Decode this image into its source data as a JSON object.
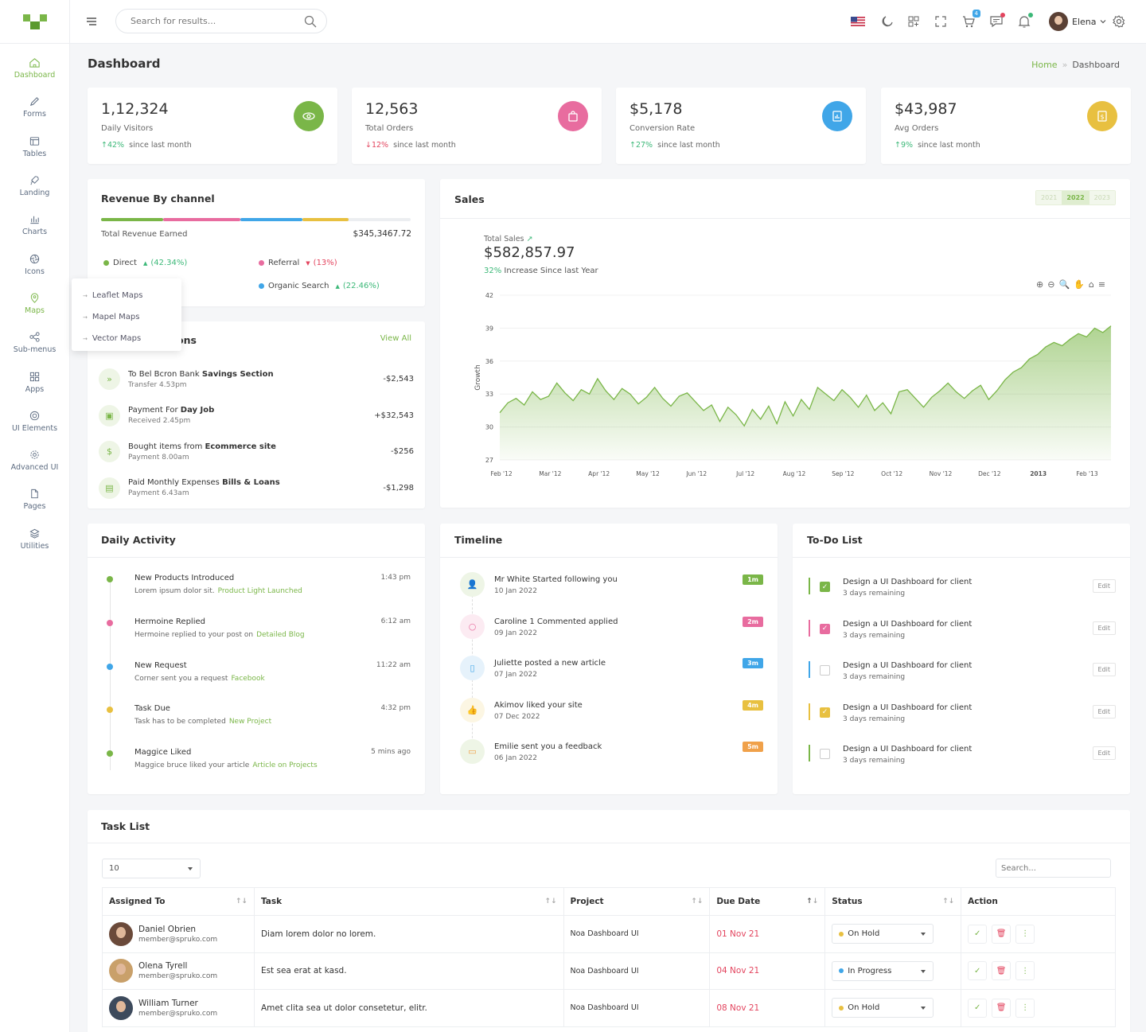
{
  "topbar": {
    "search_placeholder": "Search for results...",
    "cart_badge": "4",
    "user_name": "Elena"
  },
  "sidebar": {
    "items": [
      {
        "label": "Dashboard",
        "icon": "home-icon"
      },
      {
        "label": "Forms",
        "icon": "pencil-icon"
      },
      {
        "label": "Tables",
        "icon": "table-icon"
      },
      {
        "label": "Landing",
        "icon": "rocket-icon"
      },
      {
        "label": "Charts",
        "icon": "chart-icon"
      },
      {
        "label": "Icons",
        "icon": "aperture-icon"
      },
      {
        "label": "Maps",
        "icon": "map-pin-icon"
      },
      {
        "label": "Sub-menus",
        "icon": "share-icon"
      },
      {
        "label": "Apps",
        "icon": "grid-icon"
      },
      {
        "label": "UI Elements",
        "icon": "layers-circle-icon"
      },
      {
        "label": "Advanced UI",
        "icon": "gear-icon"
      },
      {
        "label": "Pages",
        "icon": "file-icon"
      },
      {
        "label": "Utilities",
        "icon": "stack-icon"
      }
    ],
    "maps_submenu": [
      "Leaflet Maps",
      "Mapel Maps",
      "Vector Maps"
    ]
  },
  "page": {
    "title": "Dashboard",
    "breadcrumb_home": "Home",
    "breadcrumb_sep": "»",
    "breadcrumb_current": "Dashboard"
  },
  "stats": [
    {
      "value": "1,12,324",
      "label": "Daily Visitors",
      "change": "42%",
      "direction": "up",
      "suffix": "since last month",
      "color": "#7ab648"
    },
    {
      "value": "12,563",
      "label": "Total Orders",
      "change": "12%",
      "direction": "down",
      "suffix": "since last month",
      "color": "#e86c9f"
    },
    {
      "value": "$5,178",
      "label": "Conversion Rate",
      "change": "27%",
      "direction": "up",
      "suffix": "since last month",
      "color": "#40a6e8"
    },
    {
      "value": "$43,987",
      "label": "Avg Orders",
      "change": "9%",
      "direction": "up",
      "suffix": "since last month",
      "color": "#e8c040"
    }
  ],
  "revenue": {
    "title": "Revenue By channel",
    "total_label": "Total Revenue Earned",
    "total_value": "$345,3467.72",
    "channels": [
      {
        "name": "Direct",
        "pct": "(42.34%)",
        "trend": "up",
        "color": "#7ab648"
      },
      {
        "name": "Referral",
        "pct": "(13%)",
        "trend": "down",
        "color": "#e86c9f"
      },
      {
        "name": "Organic Search",
        "pct": "(22.46%)",
        "trend": "up",
        "color": "#40a6e8"
      }
    ],
    "bar_colors": [
      "#7ab648",
      "#e86c9f",
      "#40a6e8",
      "#e8c040"
    ]
  },
  "transactions": {
    "title_visible": "ons",
    "view_all": "View All",
    "items": [
      {
        "prefix": "To Bel Bcron Bank",
        "bold": "Savings Section",
        "sub": "Transfer 4.53pm",
        "amount": "-$2,543",
        "icon": "chevrons-right-icon"
      },
      {
        "prefix": "Payment For",
        "bold": "Day Job",
        "sub": "Received 2.45pm",
        "amount": "+$32,543",
        "icon": "briefcase-icon"
      },
      {
        "prefix": "Bought items from",
        "bold": "Ecommerce site",
        "sub": "Payment 8.00am",
        "amount": "-$256",
        "icon": "dollar-icon"
      },
      {
        "prefix": "Paid Monthly Expenses",
        "bold": "Bills & Loans",
        "sub": "Payment 6.43am",
        "amount": "-$1,298",
        "icon": "document-icon"
      }
    ]
  },
  "sales": {
    "title": "Sales",
    "years": [
      "2021",
      "2022",
      "2023"
    ],
    "active_year": "2022",
    "total_label": "Total Sales",
    "total_value": "$582,857.97",
    "increase_pct": "32%",
    "increase_text": "Increase Since last Year"
  },
  "chart_data": {
    "type": "area",
    "ylabel": "Growth",
    "xlabel": "",
    "ylim": [
      27,
      42
    ],
    "yticks": [
      27,
      30,
      33,
      36,
      39,
      42
    ],
    "xticks": [
      "Feb '12",
      "Mar '12",
      "Apr '12",
      "May '12",
      "Jun '12",
      "Jul '12",
      "Aug '12",
      "Sep '12",
      "Oct '12",
      "Nov '12",
      "Dec '12",
      "2013",
      "Feb '13"
    ],
    "color": "#7ab648",
    "series": [
      {
        "values": [
          31.3,
          32.2,
          32.6,
          32.0,
          33.2,
          32.5,
          32.8,
          34.0,
          33.1,
          32.4,
          33.4,
          33.0,
          34.4,
          33.3,
          32.5,
          33.5,
          33.0,
          32.1,
          32.7,
          33.6,
          32.6,
          31.9,
          32.8,
          33.1,
          32.3,
          31.5,
          32.0,
          30.5,
          31.8,
          31.1,
          30.1,
          31.6,
          30.7,
          31.9,
          30.3,
          32.3,
          31.0,
          32.5,
          31.6,
          33.6,
          33.0,
          32.4,
          33.4,
          32.7,
          31.8,
          32.9,
          31.5,
          32.2,
          31.2,
          33.2,
          33.4,
          32.6,
          31.8,
          32.7,
          33.3,
          34.0,
          33.2,
          32.6,
          33.3,
          33.8,
          32.5,
          33.3,
          34.3,
          35.0,
          35.4,
          36.2,
          36.6,
          37.3,
          37.7,
          37.4,
          38.0,
          38.5,
          38.2,
          39.0,
          38.6,
          39.2
        ]
      }
    ]
  },
  "daily_activity": {
    "title": "Daily Activity",
    "items": [
      {
        "title": "New Products Introduced",
        "text": "Lorem ipsum dolor sit.",
        "link": "Product Light Launched",
        "time": "1:43 pm",
        "color": "#7ab648"
      },
      {
        "title": "Hermoine Replied",
        "text": "Hermoine replied to your post on",
        "link": "Detailed Blog",
        "time": "6:12 am",
        "color": "#e86c9f"
      },
      {
        "title": "New Request",
        "text": "Corner sent you a request",
        "link": "Facebook",
        "time": "11:22 am",
        "color": "#40a6e8"
      },
      {
        "title": "Task Due",
        "text": "Task has to be completed",
        "link": "New Project",
        "time": "4:32 pm",
        "color": "#e8c040"
      },
      {
        "title": "Maggice Liked",
        "text": "Maggice bruce liked your article",
        "link": "Article on Projects",
        "time": "5 mins ago",
        "color": "#7ab648"
      }
    ]
  },
  "timeline": {
    "title": "Timeline",
    "items": [
      {
        "text": "Mr White Started following you",
        "date": "10 Jan 2022",
        "tag": "1m",
        "color": "#7ab648",
        "bg": "#eef5e6",
        "icon": "user-plus-icon"
      },
      {
        "text": "Caroline 1 Commented applied",
        "date": "09 Jan 2022",
        "tag": "2m",
        "color": "#e86c9f",
        "bg": "#fcebf2",
        "icon": "comment-icon"
      },
      {
        "text": "Juliette posted a new article",
        "date": "07 Jan 2022",
        "tag": "3m",
        "color": "#40a6e8",
        "bg": "#e6f2fb",
        "icon": "clipboard-icon"
      },
      {
        "text": "Akimov liked your site",
        "date": "07 Dec 2022",
        "tag": "4m",
        "color": "#e8c040",
        "bg": "#fcf6e3",
        "icon": "thumbs-up-icon"
      },
      {
        "text": "Emilie sent you a feedback",
        "date": "06 Jan 2022",
        "tag": "5m",
        "color": "#f0a14a",
        "bg": "#eef5e6",
        "icon": "book-icon"
      }
    ]
  },
  "todo": {
    "title": "To-Do List",
    "edit_label": "Edit",
    "items": [
      {
        "text": "Design a UI Dashboard for client",
        "sub": "3 days remaining",
        "checked": true,
        "color": "#7ab648"
      },
      {
        "text": "Design a UI Dashboard for client",
        "sub": "3 days remaining",
        "checked": true,
        "color": "#e86c9f"
      },
      {
        "text": "Design a UI Dashboard for client",
        "sub": "3 days remaining",
        "checked": false,
        "color": "#40a6e8"
      },
      {
        "text": "Design a UI Dashboard for client",
        "sub": "3 days remaining",
        "checked": true,
        "color": "#e8c040"
      },
      {
        "text": "Design a UI Dashboard for client",
        "sub": "3 days remaining",
        "checked": false,
        "color": "#7ab648"
      }
    ]
  },
  "tasklist": {
    "title": "Task List",
    "page_size": "10",
    "search_placeholder": "Search...",
    "columns": [
      "Assigned To",
      "Task",
      "Project",
      "Due Date",
      "Status",
      "Action"
    ],
    "rows": [
      {
        "name": "Daniel Obrien",
        "email": "member@spruko.com",
        "task": "Diam lorem dolor no lorem.",
        "project": "Noa Dashboard UI",
        "due": "01 Nov 21",
        "status": "On Hold",
        "status_color": "#e8c040"
      },
      {
        "name": "Olena Tyrell",
        "email": "member@spruko.com",
        "task": "Est sea erat at kasd.",
        "project": "Noa Dashboard UI",
        "due": "04 Nov 21",
        "status": "In Progress",
        "status_color": "#40a6e8"
      },
      {
        "name": "William Turner",
        "email": "member@spruko.com",
        "task": "Amet clita sea ut dolor consetetur, elitr.",
        "project": "Noa Dashboard UI",
        "due": "08 Nov 21",
        "status": "On Hold",
        "status_color": "#e8c040"
      }
    ]
  }
}
